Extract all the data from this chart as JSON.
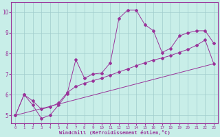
{
  "xlabel": "Windchill (Refroidissement éolien,°C)",
  "background_color": "#c8eee8",
  "grid_color": "#a0cccc",
  "line_color": "#993399",
  "xlim": [
    -0.5,
    23.5
  ],
  "ylim": [
    4.6,
    10.5
  ],
  "xticks": [
    0,
    1,
    2,
    3,
    4,
    5,
    6,
    7,
    8,
    9,
    10,
    11,
    12,
    13,
    14,
    15,
    16,
    17,
    18,
    19,
    20,
    21,
    22,
    23
  ],
  "yticks": [
    5,
    6,
    7,
    8,
    9,
    10
  ],
  "line1_x": [
    0,
    1,
    2,
    3,
    4,
    5,
    6,
    7,
    8,
    9,
    10,
    11,
    12,
    13,
    14,
    15,
    16,
    17,
    18,
    19,
    20,
    21,
    22,
    23
  ],
  "line1_y": [
    5.0,
    6.0,
    5.5,
    4.85,
    5.0,
    5.5,
    6.05,
    7.7,
    6.8,
    7.0,
    7.05,
    7.55,
    9.7,
    10.1,
    10.1,
    9.4,
    9.1,
    8.05,
    8.25,
    8.85,
    9.0,
    9.1,
    9.1,
    8.5
  ],
  "line2_x": [
    0,
    1,
    2,
    3,
    4,
    5,
    6,
    7,
    8,
    9,
    10,
    11,
    12,
    13,
    14,
    15,
    16,
    17,
    18,
    19,
    20,
    21,
    22,
    23
  ],
  "line2_y": [
    5.0,
    6.0,
    5.7,
    5.3,
    5.4,
    5.6,
    6.1,
    6.4,
    6.55,
    6.68,
    6.8,
    6.95,
    7.1,
    7.25,
    7.4,
    7.55,
    7.68,
    7.78,
    7.9,
    8.05,
    8.2,
    8.4,
    8.65,
    7.5
  ],
  "line3_x": [
    0,
    23
  ],
  "line3_y": [
    5.0,
    7.5
  ]
}
